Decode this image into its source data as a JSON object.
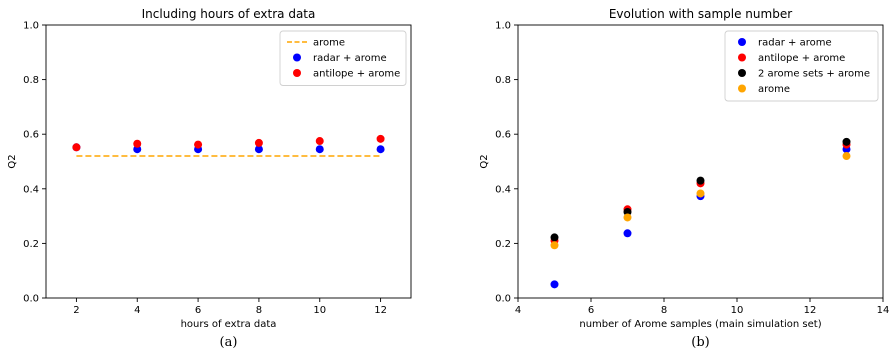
{
  "chart_data": [
    {
      "type": "scatter",
      "title": "Including hours of extra data",
      "xlabel": "hours of extra data",
      "ylabel": "Q2",
      "caption": "(a)",
      "xlim": [
        1,
        13
      ],
      "ylim": [
        0.0,
        1.0
      ],
      "xticks": [
        2,
        4,
        6,
        8,
        10,
        12
      ],
      "yticks": [
        0.0,
        0.2,
        0.4,
        0.6,
        0.8,
        1.0
      ],
      "ytick_labels": [
        "0.0",
        "0.2",
        "0.4",
        "0.6",
        "0.8",
        "1.0"
      ],
      "grid": false,
      "legend_position": "top-right",
      "reference_line": {
        "name": "arome",
        "color": "#ffa500",
        "style": "dashed",
        "x": [
          2,
          12
        ],
        "y": 0.52
      },
      "series": [
        {
          "name": "radar + arome",
          "color": "#0000ff",
          "x": [
            2,
            4,
            6,
            8,
            10,
            12
          ],
          "y": [
            0.552,
            0.545,
            0.545,
            0.545,
            0.545,
            0.545
          ]
        },
        {
          "name": "antilope + arome",
          "color": "#ff0000",
          "x": [
            2,
            4,
            6,
            8,
            10,
            12
          ],
          "y": [
            0.552,
            0.565,
            0.562,
            0.568,
            0.575,
            0.583
          ]
        }
      ]
    },
    {
      "type": "scatter",
      "title": "Evolution with sample number",
      "xlabel": "number of Arome samples (main simulation set)",
      "ylabel": "Q2",
      "caption": "(b)",
      "xlim": [
        4,
        14
      ],
      "ylim": [
        0.0,
        1.0
      ],
      "xticks": [
        4,
        6,
        8,
        10,
        12,
        14
      ],
      "yticks": [
        0.0,
        0.2,
        0.4,
        0.6,
        0.8,
        1.0
      ],
      "ytick_labels": [
        "0.0",
        "0.2",
        "0.4",
        "0.6",
        "0.8",
        "1.0"
      ],
      "grid": false,
      "legend_position": "top-right",
      "series": [
        {
          "name": "radar + arome",
          "color": "#0000ff",
          "x": [
            5,
            7,
            9,
            13
          ],
          "y": [
            0.05,
            0.237,
            0.373,
            0.545
          ]
        },
        {
          "name": "antilope + arome",
          "color": "#ff0000",
          "x": [
            5,
            7,
            9,
            13
          ],
          "y": [
            0.21,
            0.325,
            0.42,
            0.562
          ]
        },
        {
          "name": "2 arome sets + arome",
          "color": "#000000",
          "x": [
            5,
            7,
            9,
            13
          ],
          "y": [
            0.222,
            0.315,
            0.43,
            0.572
          ]
        },
        {
          "name": "arome",
          "color": "#ffa500",
          "x": [
            5,
            7,
            9,
            13
          ],
          "y": [
            0.193,
            0.295,
            0.383,
            0.52
          ]
        }
      ]
    }
  ]
}
